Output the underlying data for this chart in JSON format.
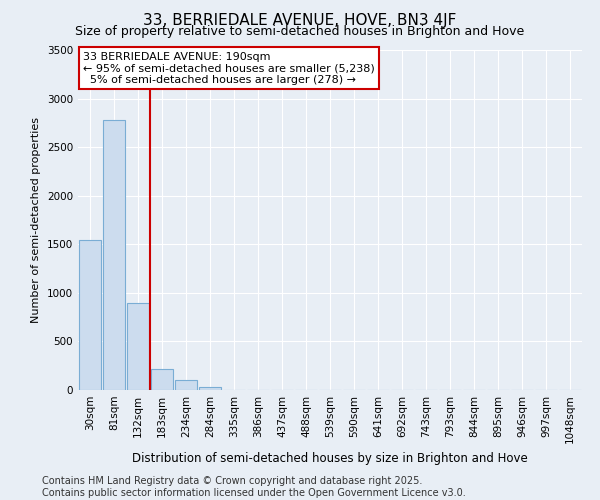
{
  "title": "33, BERRIEDALE AVENUE, HOVE, BN3 4JF",
  "subtitle": "Size of property relative to semi-detached houses in Brighton and Hove",
  "xlabel": "Distribution of semi-detached houses by size in Brighton and Hove",
  "ylabel": "Number of semi-detached properties",
  "categories": [
    "30sqm",
    "81sqm",
    "132sqm",
    "183sqm",
    "234sqm",
    "284sqm",
    "335sqm",
    "386sqm",
    "437sqm",
    "488sqm",
    "539sqm",
    "590sqm",
    "641sqm",
    "692sqm",
    "743sqm",
    "793sqm",
    "844sqm",
    "895sqm",
    "946sqm",
    "997sqm",
    "1048sqm"
  ],
  "values": [
    1540,
    2780,
    900,
    220,
    100,
    35,
    5,
    0,
    0,
    0,
    0,
    0,
    0,
    0,
    0,
    0,
    0,
    0,
    0,
    0,
    0
  ],
  "bar_color": "#ccdcee",
  "bar_edge_color": "#7aadd4",
  "vline_color": "#cc0000",
  "annotation_line1": "33 BERRIEDALE AVENUE: 190sqm",
  "annotation_line2": "← 95% of semi-detached houses are smaller (5,238)",
  "annotation_line3": "  5% of semi-detached houses are larger (278) →",
  "annotation_box_color": "#ffffff",
  "annotation_box_edge_color": "#cc0000",
  "ylim": [
    0,
    3500
  ],
  "yticks": [
    0,
    500,
    1000,
    1500,
    2000,
    2500,
    3000,
    3500
  ],
  "background_color": "#e8eef5",
  "grid_color": "#ffffff",
  "footer": "Contains HM Land Registry data © Crown copyright and database right 2025.\nContains public sector information licensed under the Open Government Licence v3.0.",
  "title_fontsize": 11,
  "subtitle_fontsize": 9,
  "ylabel_fontsize": 8,
  "xlabel_fontsize": 8.5,
  "tick_fontsize": 7.5,
  "annotation_fontsize": 8,
  "footer_fontsize": 7
}
